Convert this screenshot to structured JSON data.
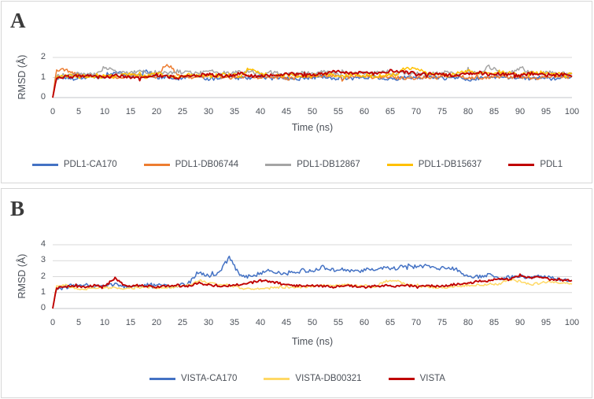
{
  "panels": [
    {
      "letter": "A"
    },
    {
      "letter": "B"
    }
  ],
  "text_color": "#4b5058",
  "gridline_color": "#d9d9d9",
  "axis_line_color": "#c3c6ca",
  "chart_data": [
    {
      "type": "line",
      "panel": "A",
      "xlabel": "Time (ns)",
      "ylabel": "RMSD (Å)",
      "x_range": [
        0,
        100
      ],
      "x_tick_step": 5,
      "ylim": [
        0,
        2
      ],
      "y_ticks": [
        0,
        1,
        2
      ],
      "grid": true,
      "legend_position": "bottom",
      "anchor_step_ns": 2,
      "series": [
        {
          "name": "PDL1-CA170",
          "color": "#4472C4",
          "noise": 0.09,
          "width": 1.5,
          "values": [
            0,
            1.0,
            0.95,
            1.0,
            1.05,
            0.95,
            1.3,
            1.1,
            1.05,
            1.35,
            1.0,
            1.05,
            0.95,
            1.0,
            1.05,
            0.9,
            1.0,
            1.05,
            0.95,
            1.0,
            1.05,
            0.95,
            1.0,
            0.9,
            0.95,
            1.0,
            1.05,
            0.95,
            1.0,
            0.95,
            1.0,
            1.05,
            0.95,
            0.9,
            1.0,
            0.95,
            1.05,
            1.0,
            0.95,
            1.0,
            0.9,
            0.95,
            1.0,
            1.05,
            0.95,
            1.0,
            0.95,
            1.0,
            0.95,
            1.0,
            1.0
          ]
        },
        {
          "name": "PDL1-DB06744",
          "color": "#ED7D31",
          "noise": 0.09,
          "width": 1.5,
          "values": [
            0,
            1.45,
            1.2,
            1.05,
            1.1,
            1.05,
            1.0,
            1.05,
            1.1,
            1.0,
            1.05,
            1.7,
            1.15,
            1.05,
            1.0,
            1.1,
            1.05,
            1.0,
            1.05,
            1.1,
            1.0,
            1.05,
            1.0,
            0.95,
            1.05,
            1.0,
            1.1,
            1.05,
            1.0,
            1.05,
            1.1,
            1.0,
            1.05,
            1.0,
            0.95,
            1.0,
            1.05,
            1.0,
            1.1,
            1.05,
            1.0,
            0.95,
            1.0,
            1.05,
            1.0,
            1.05,
            0.95,
            1.0,
            1.05,
            1.0,
            1.05
          ]
        },
        {
          "name": "PDL1-DB12867",
          "color": "#A5A5A5",
          "noise": 0.1,
          "width": 1.5,
          "values": [
            0,
            1.1,
            1.15,
            1.2,
            1.15,
            1.5,
            1.3,
            1.25,
            1.3,
            1.25,
            1.2,
            1.25,
            1.3,
            1.25,
            1.2,
            1.3,
            1.25,
            1.2,
            1.25,
            1.3,
            1.2,
            1.25,
            1.2,
            1.15,
            1.25,
            1.2,
            1.3,
            1.25,
            1.2,
            1.25,
            1.2,
            1.25,
            1.3,
            1.2,
            1.25,
            1.2,
            1.15,
            1.2,
            1.25,
            1.2,
            1.25,
            1.2,
            1.55,
            1.25,
            1.2,
            1.5,
            1.25,
            1.2,
            1.25,
            1.2,
            1.2
          ]
        },
        {
          "name": "PDL1-DB15637",
          "color": "#FFC000",
          "noise": 0.1,
          "width": 1.5,
          "values": [
            0,
            1.05,
            1.1,
            1.05,
            1.0,
            1.1,
            1.05,
            1.15,
            1.1,
            1.05,
            1.2,
            1.1,
            1.05,
            1.15,
            1.1,
            1.05,
            1.1,
            1.15,
            1.05,
            1.5,
            1.2,
            1.1,
            1.15,
            1.1,
            1.05,
            1.1,
            1.2,
            1.1,
            1.05,
            1.15,
            1.1,
            1.05,
            1.1,
            1.15,
            1.5,
            1.45,
            1.2,
            1.15,
            1.1,
            1.2,
            1.3,
            1.25,
            1.2,
            1.3,
            1.2,
            1.15,
            1.2,
            1.25,
            1.15,
            1.2,
            1.15
          ]
        },
        {
          "name": "PDL1",
          "color": "#C00000",
          "noise": 0.08,
          "width": 1.9,
          "values": [
            0,
            1.0,
            1.05,
            1.1,
            1.05,
            1.0,
            1.1,
            1.05,
            1.0,
            1.05,
            1.1,
            1.05,
            1.0,
            1.05,
            1.1,
            1.15,
            1.05,
            1.1,
            1.2,
            1.1,
            1.05,
            1.1,
            1.15,
            1.2,
            1.1,
            1.15,
            1.2,
            1.25,
            1.3,
            1.2,
            1.25,
            1.2,
            1.3,
            1.35,
            1.25,
            1.2,
            1.15,
            1.2,
            1.1,
            1.15,
            1.2,
            1.25,
            1.15,
            1.2,
            1.15,
            1.1,
            1.2,
            1.15,
            1.1,
            1.15,
            1.1
          ]
        }
      ]
    },
    {
      "type": "line",
      "panel": "B",
      "xlabel": "Time (ns)",
      "ylabel": "RMSD (Å)",
      "x_range": [
        0,
        100
      ],
      "x_tick_step": 5,
      "ylim": [
        0,
        4
      ],
      "y_ticks": [
        0,
        1,
        2,
        3,
        4
      ],
      "grid": true,
      "legend_position": "bottom",
      "anchor_step_ns": 2,
      "series": [
        {
          "name": "VISTA-CA170",
          "color": "#4472C4",
          "noise": 0.12,
          "width": 1.5,
          "values": [
            0,
            1.3,
            1.45,
            1.5,
            1.4,
            1.45,
            1.5,
            1.4,
            1.45,
            1.5,
            1.45,
            1.4,
            1.45,
            1.5,
            2.3,
            2.0,
            2.2,
            3.2,
            2.1,
            2.0,
            2.2,
            2.4,
            2.2,
            2.3,
            2.4,
            2.3,
            2.6,
            2.4,
            2.5,
            2.3,
            2.4,
            2.5,
            2.6,
            2.5,
            2.7,
            2.6,
            2.7,
            2.5,
            2.6,
            2.4,
            2.0,
            2.0,
            2.1,
            1.9,
            2.0,
            2.0,
            1.9,
            2.1,
            1.9,
            1.8,
            1.8
          ]
        },
        {
          "name": "VISTA-DB00321",
          "color": "#FFD966",
          "noise": 0.07,
          "width": 1.5,
          "values": [
            0,
            1.5,
            1.3,
            1.2,
            1.25,
            1.3,
            1.3,
            1.25,
            1.3,
            1.35,
            1.3,
            1.3,
            1.35,
            1.45,
            1.7,
            1.6,
            1.5,
            1.45,
            1.3,
            1.2,
            1.25,
            1.3,
            1.35,
            1.3,
            1.35,
            1.4,
            1.45,
            1.4,
            1.5,
            1.45,
            1.4,
            1.35,
            1.7,
            1.8,
            1.5,
            1.4,
            1.35,
            1.3,
            1.35,
            1.4,
            1.45,
            1.5,
            1.45,
            1.55,
            1.8,
            1.7,
            1.5,
            1.6,
            1.7,
            1.6,
            1.55
          ]
        },
        {
          "name": "VISTA",
          "color": "#C00000",
          "noise": 0.07,
          "width": 1.9,
          "values": [
            0,
            1.35,
            1.4,
            1.35,
            1.45,
            1.4,
            1.9,
            1.4,
            1.45,
            1.4,
            1.35,
            1.4,
            1.45,
            1.4,
            1.6,
            1.5,
            1.4,
            1.45,
            1.5,
            1.6,
            1.75,
            1.7,
            1.55,
            1.45,
            1.4,
            1.45,
            1.4,
            1.35,
            1.45,
            1.4,
            1.35,
            1.4,
            1.45,
            1.4,
            1.45,
            1.4,
            1.45,
            1.4,
            1.45,
            1.5,
            1.6,
            1.7,
            1.75,
            1.9,
            1.8,
            2.1,
            1.9,
            2.0,
            1.8,
            1.75,
            1.8
          ]
        }
      ]
    }
  ]
}
